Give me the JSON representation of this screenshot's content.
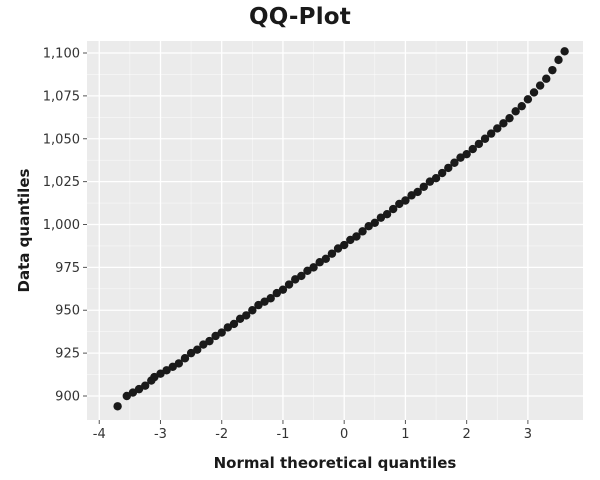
{
  "chart_data": {
    "type": "scatter",
    "title": "QQ-Plot",
    "xlabel": "Normal theoretical quantiles",
    "ylabel": "Data quantiles",
    "xlim": [
      -4.2,
      3.9
    ],
    "ylim": [
      886,
      1107
    ],
    "grid": true,
    "x_ticks": [
      -4,
      -3,
      -2,
      -1,
      0,
      1,
      2,
      3
    ],
    "x_tick_labels": [
      "-4",
      "-3",
      "-2",
      "-1",
      "0",
      "1",
      "2",
      "3"
    ],
    "y_ticks": [
      900,
      925,
      950,
      975,
      1000,
      1025,
      1050,
      1075,
      1100
    ],
    "y_tick_labels": [
      "900",
      "925",
      "950",
      "975",
      "1,000",
      "1,025",
      "1,050",
      "1,075",
      "1,100"
    ],
    "points": [
      {
        "x": -3.7,
        "y": 894
      },
      {
        "x": -3.55,
        "y": 900
      },
      {
        "x": -3.45,
        "y": 902
      },
      {
        "x": -3.35,
        "y": 904
      },
      {
        "x": -3.25,
        "y": 906
      },
      {
        "x": -3.15,
        "y": 909
      },
      {
        "x": -3.1,
        "y": 911
      },
      {
        "x": -3.0,
        "y": 913
      },
      {
        "x": -2.9,
        "y": 915
      },
      {
        "x": -2.8,
        "y": 917
      },
      {
        "x": -2.7,
        "y": 919
      },
      {
        "x": -2.6,
        "y": 922
      },
      {
        "x": -2.5,
        "y": 925
      },
      {
        "x": -2.4,
        "y": 927
      },
      {
        "x": -2.3,
        "y": 930
      },
      {
        "x": -2.2,
        "y": 932
      },
      {
        "x": -2.1,
        "y": 935
      },
      {
        "x": -2.0,
        "y": 937
      },
      {
        "x": -1.9,
        "y": 940
      },
      {
        "x": -1.8,
        "y": 942
      },
      {
        "x": -1.7,
        "y": 945
      },
      {
        "x": -1.6,
        "y": 947
      },
      {
        "x": -1.5,
        "y": 950
      },
      {
        "x": -1.4,
        "y": 953
      },
      {
        "x": -1.3,
        "y": 955
      },
      {
        "x": -1.2,
        "y": 957
      },
      {
        "x": -1.1,
        "y": 960
      },
      {
        "x": -1.0,
        "y": 962
      },
      {
        "x": -0.9,
        "y": 965
      },
      {
        "x": -0.8,
        "y": 968
      },
      {
        "x": -0.7,
        "y": 970
      },
      {
        "x": -0.6,
        "y": 973
      },
      {
        "x": -0.5,
        "y": 975
      },
      {
        "x": -0.4,
        "y": 978
      },
      {
        "x": -0.3,
        "y": 980
      },
      {
        "x": -0.2,
        "y": 983
      },
      {
        "x": -0.1,
        "y": 986
      },
      {
        "x": 0.0,
        "y": 988
      },
      {
        "x": 0.1,
        "y": 991
      },
      {
        "x": 0.2,
        "y": 993
      },
      {
        "x": 0.3,
        "y": 996
      },
      {
        "x": 0.4,
        "y": 999
      },
      {
        "x": 0.5,
        "y": 1001
      },
      {
        "x": 0.6,
        "y": 1004
      },
      {
        "x": 0.7,
        "y": 1006
      },
      {
        "x": 0.8,
        "y": 1009
      },
      {
        "x": 0.9,
        "y": 1012
      },
      {
        "x": 1.0,
        "y": 1014
      },
      {
        "x": 1.1,
        "y": 1017
      },
      {
        "x": 1.2,
        "y": 1019
      },
      {
        "x": 1.3,
        "y": 1022
      },
      {
        "x": 1.4,
        "y": 1025
      },
      {
        "x": 1.5,
        "y": 1027
      },
      {
        "x": 1.6,
        "y": 1030
      },
      {
        "x": 1.7,
        "y": 1033
      },
      {
        "x": 1.8,
        "y": 1036
      },
      {
        "x": 1.9,
        "y": 1039
      },
      {
        "x": 2.0,
        "y": 1041
      },
      {
        "x": 2.1,
        "y": 1044
      },
      {
        "x": 2.2,
        "y": 1047
      },
      {
        "x": 2.3,
        "y": 1050
      },
      {
        "x": 2.4,
        "y": 1053
      },
      {
        "x": 2.5,
        "y": 1056
      },
      {
        "x": 2.6,
        "y": 1059
      },
      {
        "x": 2.7,
        "y": 1062
      },
      {
        "x": 2.8,
        "y": 1066
      },
      {
        "x": 2.9,
        "y": 1069
      },
      {
        "x": 3.0,
        "y": 1073
      },
      {
        "x": 3.1,
        "y": 1077
      },
      {
        "x": 3.2,
        "y": 1081
      },
      {
        "x": 3.3,
        "y": 1085
      },
      {
        "x": 3.4,
        "y": 1090
      },
      {
        "x": 3.5,
        "y": 1096
      },
      {
        "x": 3.6,
        "y": 1101
      }
    ],
    "point_color": "#1a1a1a",
    "panel_color": "#ebebeb",
    "grid_color": "#ffffff"
  }
}
